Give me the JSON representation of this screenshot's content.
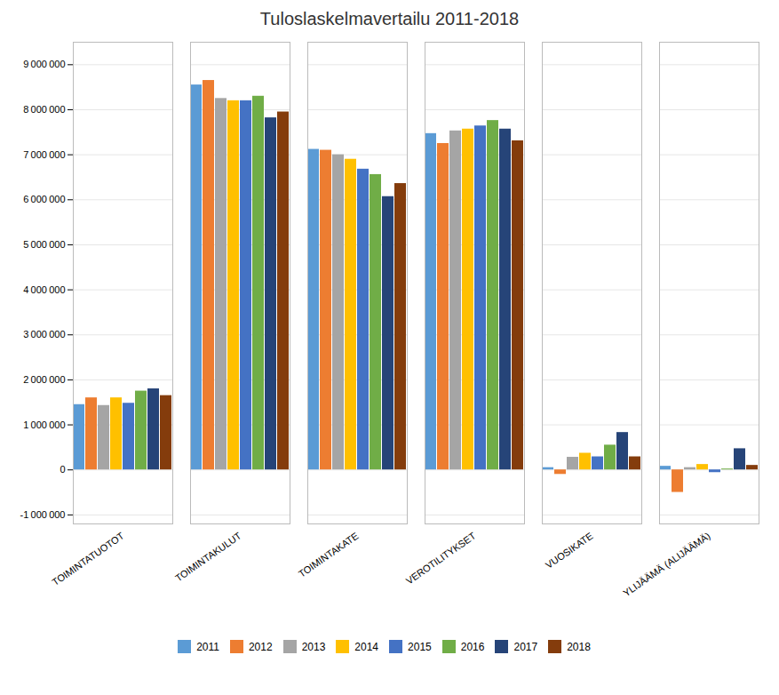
{
  "chart_data": {
    "type": "bar",
    "title": "Tuloslaskelmavertailu 2011-2018",
    "categories": [
      "TOIMINTATUOTOT",
      "TOIMINTAKULUT",
      "TOIMINTAKATE",
      "VEROTILITYKSET",
      "VUOSIKATE",
      "YLIJÄÄMÄ (ALIJÄÄMÄ)"
    ],
    "series": [
      {
        "name": "2011",
        "color": "#5B9BD5",
        "values": [
          1450000,
          8550000,
          7120000,
          7470000,
          50000,
          80000
        ]
      },
      {
        "name": "2012",
        "color": "#ED7D31",
        "values": [
          1600000,
          8650000,
          7100000,
          7250000,
          -100000,
          -500000
        ]
      },
      {
        "name": "2013",
        "color": "#A5A5A5",
        "values": [
          1430000,
          8250000,
          7000000,
          7530000,
          280000,
          50000
        ]
      },
      {
        "name": "2014",
        "color": "#FFC000",
        "values": [
          1600000,
          8200000,
          6900000,
          7570000,
          370000,
          120000
        ]
      },
      {
        "name": "2015",
        "color": "#4472C4",
        "values": [
          1480000,
          8200000,
          6680000,
          7640000,
          290000,
          -60000
        ]
      },
      {
        "name": "2016",
        "color": "#70AD47",
        "values": [
          1750000,
          8300000,
          6560000,
          7760000,
          550000,
          20000
        ]
      },
      {
        "name": "2017",
        "color": "#264478",
        "values": [
          1800000,
          7820000,
          6070000,
          7570000,
          830000,
          470000
        ]
      },
      {
        "name": "2018",
        "color": "#843C0C",
        "values": [
          1650000,
          7950000,
          6360000,
          7310000,
          290000,
          100000
        ]
      }
    ],
    "ylim": [
      -1200000,
      9500000
    ],
    "yticks": [
      {
        "value": -1000000,
        "label": "-1 000 000"
      },
      0,
      {
        "value": 1000000,
        "label": "1 000 000"
      },
      {
        "value": 2000000,
        "label": "2 000 000"
      },
      {
        "value": 3000000,
        "label": "3 000 000"
      },
      {
        "value": 4000000,
        "label": "4 000 000"
      },
      {
        "value": 5000000,
        "label": "5 000 000"
      },
      {
        "value": 6000000,
        "label": "6 000 000"
      },
      {
        "value": 7000000,
        "label": "7 000 000"
      },
      {
        "value": 8000000,
        "label": "8 000 000"
      },
      {
        "value": 9000000,
        "label": "9 000 000"
      }
    ],
    "grid": true,
    "legend": "bottom"
  }
}
